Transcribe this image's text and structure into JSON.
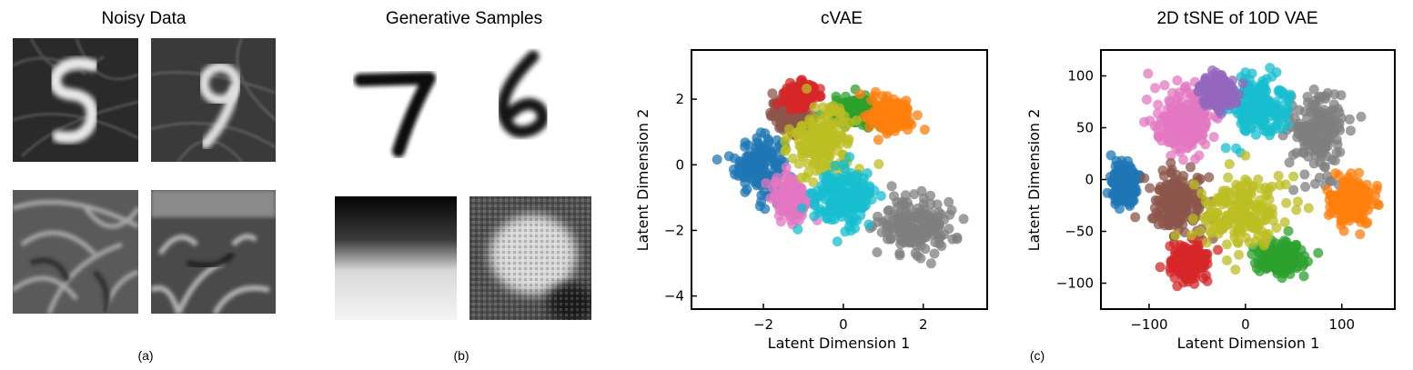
{
  "panel_a": {
    "title": "Noisy Data",
    "caption": "(a)"
  },
  "panel_b": {
    "title": "Generative Samples",
    "caption": "(b)"
  },
  "panel_c": {
    "caption": "(c)"
  },
  "chart_data": [
    {
      "type": "scatter",
      "title": "cVAE",
      "xlabel": "Latent Dimension 1",
      "ylabel": "Latent Dimension 2",
      "xlim": [
        -3.8,
        3.6
      ],
      "ylim": [
        -4.4,
        3.5
      ],
      "xticks": [
        "−2",
        "0",
        "2"
      ],
      "xtick_values": [
        -2,
        0,
        2
      ],
      "yticks": [
        "2",
        "0",
        "−2",
        "−4"
      ],
      "ytick_values": [
        2,
        0,
        -2,
        -4
      ],
      "grid": false,
      "series": [
        {
          "color": "#1f77b4",
          "center": [
            -2.1,
            0.0
          ],
          "spread": [
            0.55,
            0.8
          ]
        },
        {
          "color": "#8c564b",
          "center": [
            -1.3,
            1.5
          ],
          "spread": [
            0.45,
            0.45
          ]
        },
        {
          "color": "#d62728",
          "center": [
            -1.1,
            2.1
          ],
          "spread": [
            0.35,
            0.35
          ]
        },
        {
          "color": "#e377c2",
          "center": [
            -1.3,
            -1.0
          ],
          "spread": [
            0.4,
            0.6
          ]
        },
        {
          "color": "#2ca02c",
          "center": [
            0.3,
            1.6
          ],
          "spread": [
            0.5,
            0.4
          ]
        },
        {
          "color": "#ff7f0e",
          "center": [
            1.2,
            1.5
          ],
          "spread": [
            0.45,
            0.45
          ]
        },
        {
          "color": "#7f7f7f",
          "center": [
            1.8,
            -1.8
          ],
          "spread": [
            0.9,
            0.8
          ]
        },
        {
          "color": "#bcbd22",
          "center": [
            -0.5,
            0.7
          ],
          "spread": [
            0.7,
            0.9
          ]
        },
        {
          "color": "#17becf",
          "center": [
            0.0,
            -1.0
          ],
          "spread": [
            0.7,
            0.75
          ]
        }
      ]
    },
    {
      "type": "scatter",
      "title": "2D tSNE of 10D VAE",
      "xlabel": "Latent Dimension 1",
      "ylabel": "Latent Dimension 2",
      "xlim": [
        -150,
        155
      ],
      "ylim": [
        -125,
        125
      ],
      "xticks": [
        "−100",
        "0",
        "100"
      ],
      "xtick_values": [
        -100,
        0,
        100
      ],
      "yticks": [
        "100",
        "50",
        "0",
        "−50",
        "−100"
      ],
      "ytick_values": [
        100,
        50,
        0,
        -50,
        -100
      ],
      "grid": false,
      "series": [
        {
          "color": "#1f77b4",
          "center": [
            -125,
            -5
          ],
          "spread": [
            12,
            18
          ]
        },
        {
          "color": "#7f7f7f",
          "center": [
            75,
            45
          ],
          "spread": [
            25,
            35
          ]
        },
        {
          "color": "#e377c2",
          "center": [
            -65,
            55
          ],
          "spread": [
            25,
            30
          ]
        },
        {
          "color": "#17becf",
          "center": [
            10,
            70
          ],
          "spread": [
            32,
            28
          ]
        },
        {
          "color": "#9467bd",
          "center": [
            -30,
            85
          ],
          "spread": [
            18,
            14
          ]
        },
        {
          "color": "#d62728",
          "center": [
            -60,
            -80
          ],
          "spread": [
            20,
            16
          ]
        },
        {
          "color": "#2ca02c",
          "center": [
            35,
            -75
          ],
          "spread": [
            22,
            14
          ]
        },
        {
          "color": "#8c564b",
          "center": [
            -70,
            -20
          ],
          "spread": [
            25,
            25
          ]
        },
        {
          "color": "#ff7f0e",
          "center": [
            110,
            -20
          ],
          "spread": [
            18,
            22
          ]
        },
        {
          "color": "#bcbd22",
          "center": [
            0,
            -30
          ],
          "spread": [
            45,
            30
          ]
        }
      ]
    }
  ]
}
